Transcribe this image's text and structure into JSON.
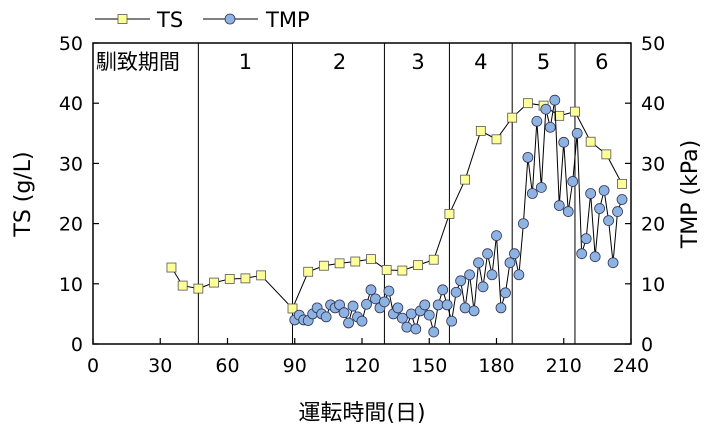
{
  "chart_data": {
    "type": "line",
    "xlabel": "運転時間(日)",
    "ylabel_left": "TS (g/L)",
    "ylabel_right": "TMP (kPa)",
    "xlim": [
      0,
      240
    ],
    "ylim_left": [
      0,
      50
    ],
    "ylim_right": [
      0,
      50
    ],
    "x_ticks": [
      0,
      30,
      60,
      90,
      120,
      150,
      180,
      210,
      240
    ],
    "y_ticks": [
      0,
      10,
      20,
      30,
      40,
      50
    ],
    "legend_position": "top-left",
    "phase_boundaries": [
      47,
      89,
      130,
      159,
      187,
      215
    ],
    "phases": [
      {
        "label": "馴致期間",
        "center": 20
      },
      {
        "label": "1",
        "center": 68
      },
      {
        "label": "2",
        "center": 110
      },
      {
        "label": "3",
        "center": 145
      },
      {
        "label": "4",
        "center": 173
      },
      {
        "label": "5",
        "center": 201
      },
      {
        "label": "6",
        "center": 227
      }
    ],
    "series": [
      {
        "name": "TS",
        "axis": "left",
        "color": "#ffff99",
        "marker": "square",
        "x": [
          35,
          40,
          47,
          54,
          61,
          68,
          75,
          89,
          96,
          103,
          110,
          117,
          124,
          131,
          138,
          145,
          152,
          159,
          166,
          173,
          180,
          187,
          194,
          201,
          208,
          215,
          222,
          229,
          236
        ],
        "y": [
          12.7,
          9.7,
          9.2,
          10.2,
          10.8,
          10.9,
          11.4,
          5.9,
          12.0,
          13.0,
          13.4,
          13.7,
          14.1,
          12.3,
          12.2,
          13.1,
          14.0,
          21.6,
          27.3,
          35.4,
          34.0,
          37.6,
          40.0,
          39.6,
          37.9,
          38.6,
          33.6,
          31.5,
          26.6
        ]
      },
      {
        "name": "TMP",
        "axis": "right",
        "color": "#8db3e2",
        "marker": "circle",
        "x": [
          90,
          92,
          94,
          96,
          98,
          100,
          102,
          104,
          106,
          108,
          110,
          112,
          114,
          116,
          118,
          120,
          122,
          124,
          126,
          128,
          130,
          132,
          134,
          136,
          138,
          140,
          142,
          144,
          146,
          148,
          150,
          152,
          154,
          156,
          158,
          160,
          162,
          164,
          166,
          168,
          170,
          172,
          174,
          176,
          178,
          180,
          182,
          184,
          186,
          188,
          190,
          192,
          194,
          196,
          198,
          200,
          202,
          204,
          206,
          208,
          210,
          212,
          214,
          216,
          218,
          220,
          222,
          224,
          226,
          228,
          230,
          232,
          234,
          236
        ],
        "y": [
          4.0,
          4.8,
          4.0,
          3.9,
          5.0,
          6.0,
          5.0,
          4.5,
          6.5,
          6.0,
          6.5,
          5.2,
          3.5,
          6.3,
          4.5,
          3.8,
          6.6,
          9.0,
          7.5,
          6.0,
          7.0,
          8.8,
          5.0,
          6.0,
          4.3,
          2.8,
          5.0,
          2.5,
          5.5,
          6.5,
          4.8,
          2.0,
          6.5,
          9.0,
          6.5,
          3.8,
          8.6,
          10.5,
          6.0,
          11.5,
          5.5,
          13.5,
          9.5,
          15.0,
          11.5,
          18.0,
          6.0,
          8.5,
          13.5,
          15.0,
          11.5,
          20.0,
          31.0,
          25.0,
          37.0,
          26.0,
          39.0,
          36.0,
          40.5,
          23.0,
          33.5,
          22.0,
          27.0,
          35.0,
          15.0,
          17.5,
          25.0,
          14.5,
          22.5,
          25.5,
          20.5,
          13.5,
          22.0,
          24.0
        ]
      }
    ]
  }
}
